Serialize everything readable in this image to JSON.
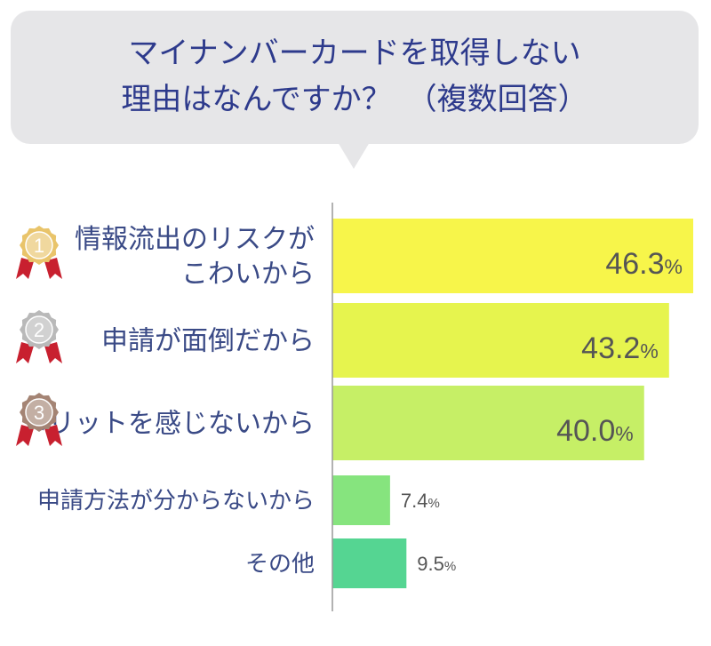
{
  "title": {
    "line1": "マイナンバーカードを取得しない",
    "line2": "理由はなんですか？　（複数回答）"
  },
  "colors": {
    "title": "#2d3a8c",
    "label": "#3a4a86",
    "value": "#555555",
    "axis": "#999999",
    "bubble": "#e6e6e8"
  },
  "chart_data": {
    "type": "bar",
    "orientation": "horizontal",
    "unit": "%",
    "xlim": [
      0,
      46.3
    ],
    "categories": [
      "情報流出のリスクが\nこわいから",
      "申請が面倒だから",
      "メリットを感じないから",
      "申請方法が分からないから",
      "その他"
    ],
    "values": [
      46.3,
      43.2,
      40.0,
      7.4,
      9.5
    ],
    "value_labels": [
      "46.3",
      "43.2",
      "40.0",
      "7.4",
      "9.5"
    ],
    "bar_colors": [
      "#f7f54a",
      "#e6f44e",
      "#c6ef66",
      "#86e47e",
      "#55d592"
    ],
    "rank_badges": [
      {
        "rank": "1",
        "medal": "gold",
        "color": "#e9c46a",
        "ribbon": "#c8202f"
      },
      {
        "rank": "2",
        "medal": "silver",
        "color": "#b9b9b9",
        "ribbon": "#c8202f"
      },
      {
        "rank": "3",
        "medal": "bronze",
        "color": "#a48474",
        "ribbon": "#c8202f"
      }
    ]
  }
}
